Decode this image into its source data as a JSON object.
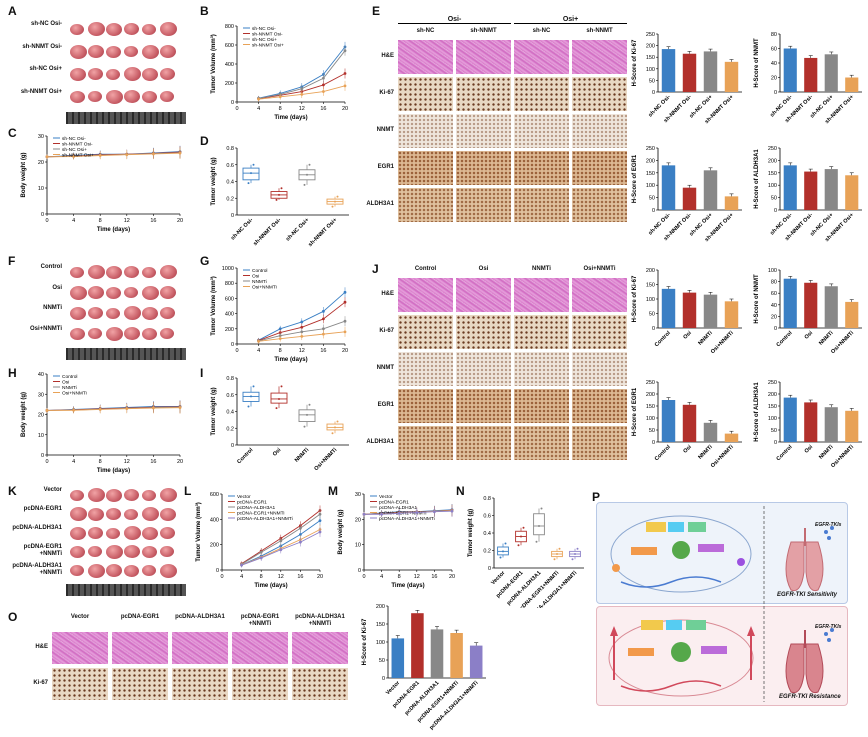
{
  "panels": {
    "A": "A",
    "B": "B",
    "C": "C",
    "D": "D",
    "E": "E",
    "F": "F",
    "G": "G",
    "H": "H",
    "I": "I",
    "J": "J",
    "K": "K",
    "L": "L",
    "M": "M",
    "N": "N",
    "O": "O",
    "P": "P"
  },
  "panelA": {
    "rows": [
      "sh-NC Osi-",
      "sh-NNMT Osi-",
      "sh-NC Osi+",
      "sh-NNMT Osi+"
    ]
  },
  "panelF": {
    "rows": [
      "Control",
      "Osi",
      "NNMTi",
      "Osi+NNMTi"
    ]
  },
  "panelK": {
    "rows": [
      "Vector",
      "pcDNA-EGR1",
      "pcDNA-ALDH3A1",
      "pcDNA-EGR1\n+NNMTi",
      "pcDNA-ALDH3A1\n+NNMTi"
    ]
  },
  "ihcE": {
    "group_left": "Osi-",
    "group_right": "Osi+",
    "cols": [
      "sh-NC",
      "sh-NNMT",
      "sh-NC",
      "sh-NNMT"
    ],
    "rows": [
      "H&E",
      "Ki-67",
      "NNMT",
      "EGR1",
      "ALDH3A1"
    ]
  },
  "ihcJ": {
    "cols": [
      "Control",
      "Osi",
      "NNMTi",
      "Osi+NNMTi"
    ],
    "rows": [
      "H&E",
      "Ki-67",
      "NNMT",
      "EGR1",
      "ALDH3A1"
    ]
  },
  "ihcO": {
    "cols": [
      "Vector",
      "pcDNA-EGR1",
      "pcDNA-ALDH3A1",
      "pcDNA-EGR1\n+NNMTi",
      "pcDNA-ALDH3A1\n+NNMTi"
    ],
    "rows": [
      "H&E",
      "Ki-67"
    ]
  },
  "schematic": {
    "sensitivity": "EGFR-TKI Sensitivity",
    "resistance": "EGFR-TKI Resistance",
    "tki": "EGFR-TKIs"
  },
  "chart_data": [
    {
      "id": "B",
      "type": "line",
      "xlabel": "Time (days)",
      "ylabel": "Tumor Volume (mm³)",
      "x": [
        4,
        8,
        12,
        16,
        20
      ],
      "xticks": [
        0,
        4,
        8,
        12,
        16,
        20
      ],
      "yticks": [
        0,
        200,
        400,
        600,
        800
      ],
      "ylim": [
        0,
        800
      ],
      "series": [
        {
          "name": "sh-NC Osi-",
          "color": "#3a7fc4",
          "values": [
            40,
            90,
            160,
            290,
            580
          ]
        },
        {
          "name": "sh-NNMT Osi-",
          "color": "#b2302b",
          "values": [
            35,
            70,
            110,
            180,
            300
          ]
        },
        {
          "name": "sh-NC Osi+",
          "color": "#888888",
          "values": [
            38,
            80,
            140,
            250,
            540
          ]
        },
        {
          "name": "sh-NNMT Osi+",
          "color": "#e8a257",
          "values": [
            30,
            55,
            80,
            110,
            170
          ]
        }
      ]
    },
    {
      "id": "C",
      "type": "line",
      "xlabel": "Time (days)",
      "ylabel": "Body weight (g)",
      "x": [
        0,
        4,
        8,
        12,
        16,
        20
      ],
      "xticks": [
        0,
        4,
        8,
        12,
        16,
        20
      ],
      "yticks": [
        0,
        10,
        20,
        30
      ],
      "ylim": [
        0,
        30
      ],
      "series": [
        {
          "name": "sh-NC Osi-",
          "color": "#3a7fc4",
          "values": [
            22,
            22.5,
            23,
            23,
            23.5,
            24
          ]
        },
        {
          "name": "sh-NNMT Osi-",
          "color": "#b2302b",
          "values": [
            22,
            22.3,
            22.8,
            23,
            23.3,
            23.8
          ]
        },
        {
          "name": "sh-NC Osi+",
          "color": "#888888",
          "values": [
            22,
            22.2,
            22.6,
            22.9,
            23.2,
            23.6
          ]
        },
        {
          "name": "sh-NNMT Osi+",
          "color": "#e8a257",
          "values": [
            22,
            22.1,
            22.5,
            22.8,
            23.1,
            23.4
          ]
        }
      ]
    },
    {
      "id": "D",
      "type": "box",
      "ylabel": "Tumor weight (g)",
      "yticks": [
        0.0,
        0.2,
        0.4,
        0.6,
        0.8
      ],
      "ylim": [
        0,
        0.8
      ],
      "categories": [
        "sh-NC Osi-",
        "sh-NNMT Osi-",
        "sh-NC Osi+",
        "sh-NNMT Osi+"
      ],
      "colors": [
        "#3a7fc4",
        "#b2302b",
        "#888888",
        "#e8a257"
      ],
      "boxes": [
        [
          0.38,
          0.42,
          0.5,
          0.56,
          0.6
        ],
        [
          0.18,
          0.2,
          0.24,
          0.28,
          0.32
        ],
        [
          0.36,
          0.42,
          0.48,
          0.54,
          0.6
        ],
        [
          0.1,
          0.13,
          0.16,
          0.19,
          0.22
        ]
      ]
    },
    {
      "id": "G",
      "type": "line",
      "xlabel": "Time (days)",
      "ylabel": "Tumor Volume (mm³)",
      "x": [
        4,
        8,
        12,
        16,
        20
      ],
      "xticks": [
        0,
        4,
        8,
        12,
        16,
        20
      ],
      "yticks": [
        0,
        200,
        400,
        600,
        800,
        1000
      ],
      "ylim": [
        0,
        1000
      ],
      "series": [
        {
          "name": "Control",
          "color": "#3a7fc4",
          "values": [
            50,
            200,
            290,
            430,
            680
          ]
        },
        {
          "name": "Osi",
          "color": "#b2302b",
          "values": [
            45,
            150,
            220,
            330,
            550
          ]
        },
        {
          "name": "NNMTi",
          "color": "#888888",
          "values": [
            40,
            110,
            160,
            200,
            300
          ]
        },
        {
          "name": "Osi+NNMTi",
          "color": "#e8a257",
          "values": [
            35,
            70,
            100,
            130,
            160
          ]
        }
      ]
    },
    {
      "id": "H",
      "type": "line",
      "xlabel": "Time (days)",
      "ylabel": "Body weight (g)",
      "x": [
        0,
        4,
        8,
        12,
        16,
        20
      ],
      "xticks": [
        0,
        4,
        8,
        12,
        16,
        20
      ],
      "yticks": [
        0,
        10,
        20,
        30,
        40
      ],
      "ylim": [
        0,
        40
      ],
      "series": [
        {
          "name": "Control",
          "color": "#3a7fc4",
          "values": [
            22,
            22.5,
            23,
            23.5,
            24,
            24
          ]
        },
        {
          "name": "Osi",
          "color": "#b2302b",
          "values": [
            22,
            22.3,
            22.8,
            23.2,
            23.6,
            23.8
          ]
        },
        {
          "name": "NNMTi",
          "color": "#888888",
          "values": [
            22,
            22.2,
            22.6,
            23,
            23.4,
            23.6
          ]
        },
        {
          "name": "Osi+NNMTi",
          "color": "#e8a257",
          "values": [
            22,
            22.1,
            22.5,
            22.9,
            23.2,
            23.4
          ]
        }
      ]
    },
    {
      "id": "I",
      "type": "box",
      "ylabel": "Tumor weight (g)",
      "yticks": [
        0.0,
        0.2,
        0.4,
        0.6,
        0.8
      ],
      "ylim": [
        0,
        0.8
      ],
      "categories": [
        "Control",
        "Osi",
        "NNMTi",
        "Osi+NNMTi"
      ],
      "colors": [
        "#3a7fc4",
        "#b2302b",
        "#888888",
        "#e8a257"
      ],
      "boxes": [
        [
          0.46,
          0.52,
          0.58,
          0.63,
          0.7
        ],
        [
          0.44,
          0.5,
          0.55,
          0.62,
          0.7
        ],
        [
          0.22,
          0.28,
          0.36,
          0.42,
          0.48
        ],
        [
          0.14,
          0.18,
          0.21,
          0.25,
          0.28
        ]
      ]
    },
    {
      "id": "L",
      "type": "line",
      "xlabel": "Time (days)",
      "ylabel": "Tumor Volume (mm³)",
      "x": [
        4,
        8,
        12,
        16,
        20
      ],
      "xticks": [
        0,
        4,
        8,
        12,
        16,
        20
      ],
      "yticks": [
        0,
        200,
        400,
        600
      ],
      "ylim": [
        0,
        600
      ],
      "series": [
        {
          "name": "Vector",
          "color": "#3a7fc4",
          "values": [
            40,
            110,
            190,
            280,
            390
          ]
        },
        {
          "name": "pcDNA-EGR1",
          "color": "#b2302b",
          "values": [
            50,
            150,
            250,
            350,
            470
          ]
        },
        {
          "name": "pcDNA-ALDH3A1",
          "color": "#888888",
          "values": [
            45,
            140,
            230,
            330,
            440
          ]
        },
        {
          "name": "pcDNA-EGR1+NNMTi",
          "color": "#e8a257",
          "values": [
            40,
            100,
            170,
            240,
            320
          ]
        },
        {
          "name": "pcDNA-ALDH3A1+NNMTi",
          "color": "#8b7fc7",
          "values": [
            38,
            95,
            160,
            220,
            300
          ]
        }
      ]
    },
    {
      "id": "M",
      "type": "line",
      "xlabel": "Time (days)",
      "ylabel": "Body weight (g)",
      "x": [
        0,
        4,
        8,
        12,
        16,
        20
      ],
      "xticks": [
        0,
        4,
        8,
        12,
        16,
        20
      ],
      "yticks": [
        0,
        10,
        20,
        30
      ],
      "ylim": [
        0,
        30
      ],
      "series": [
        {
          "name": "Vector",
          "color": "#3a7fc4",
          "values": [
            22,
            22.5,
            23,
            23,
            23.4,
            23.8
          ]
        },
        {
          "name": "pcDNA-EGR1",
          "color": "#b2302b",
          "values": [
            22,
            22.3,
            22.8,
            23,
            23.2,
            23.6
          ]
        },
        {
          "name": "pcDNA-ALDH3A1",
          "color": "#888888",
          "values": [
            22,
            22.2,
            22.6,
            22.9,
            23.2,
            23.5
          ]
        },
        {
          "name": "pcDNA-EGR1+NNMTi",
          "color": "#e8a257",
          "values": [
            22,
            22.1,
            22.5,
            22.8,
            23.1,
            23.4
          ]
        },
        {
          "name": "pcDNA-ALDH3A1+NNMTi",
          "color": "#8b7fc7",
          "values": [
            22,
            22,
            22.4,
            22.7,
            23,
            23.2
          ]
        }
      ]
    },
    {
      "id": "N",
      "type": "box",
      "ylabel": "Tumor weight (g)",
      "yticks": [
        0.0,
        0.2,
        0.4,
        0.6,
        0.8
      ],
      "ylim": [
        0,
        0.8
      ],
      "categories": [
        "Vector",
        "pcDNA-EGR1",
        "pcDNA-ALDH3A1",
        "pcDNA-EGR1+NNMTi",
        "pcDNA-ALDH3A1+NNMTi"
      ],
      "colors": [
        "#3a7fc4",
        "#b2302b",
        "#888888",
        "#e8a257",
        "#8b7fc7"
      ],
      "boxes": [
        [
          0.12,
          0.15,
          0.19,
          0.24,
          0.28
        ],
        [
          0.26,
          0.3,
          0.36,
          0.42,
          0.46
        ],
        [
          0.3,
          0.38,
          0.48,
          0.62,
          0.68
        ],
        [
          0.1,
          0.13,
          0.16,
          0.19,
          0.22
        ],
        [
          0.1,
          0.13,
          0.16,
          0.19,
          0.22
        ]
      ]
    },
    {
      "id": "E1",
      "type": "bar",
      "ylabel": "H-Score of Ki-67",
      "yticks": [
        0,
        50,
        100,
        150,
        200,
        250
      ],
      "ylim": [
        0,
        250
      ],
      "categories": [
        "sh-NC Osi-",
        "sh-NNMT Osi-",
        "sh-NC Osi+",
        "sh-NNMT Osi+"
      ],
      "colors": [
        "#3a7fc4",
        "#b2302b",
        "#888888",
        "#e8a257"
      ],
      "values": [
        185,
        165,
        175,
        130
      ]
    },
    {
      "id": "E2",
      "type": "bar",
      "ylabel": "H-Score of NNMT",
      "yticks": [
        0,
        20,
        40,
        60,
        80
      ],
      "ylim": [
        0,
        80
      ],
      "categories": [
        "sh-NC Osi-",
        "sh-NNMT Osi-",
        "sh-NC Osi+",
        "sh-NNMT Osi+"
      ],
      "colors": [
        "#3a7fc4",
        "#b2302b",
        "#888888",
        "#e8a257"
      ],
      "values": [
        60,
        47,
        52,
        20
      ]
    },
    {
      "id": "E3",
      "type": "bar",
      "ylabel": "H-Score of EGR1",
      "yticks": [
        0,
        50,
        100,
        150,
        200,
        250
      ],
      "ylim": [
        0,
        250
      ],
      "categories": [
        "sh-NC Osi-",
        "sh-NNMT Osi-",
        "sh-NC Osi+",
        "sh-NNMT Osi+"
      ],
      "colors": [
        "#3a7fc4",
        "#b2302b",
        "#888888",
        "#e8a257"
      ],
      "values": [
        180,
        90,
        160,
        55
      ]
    },
    {
      "id": "E4",
      "type": "bar",
      "ylabel": "H-Score of ALDH3A1",
      "yticks": [
        0,
        50,
        100,
        150,
        200,
        250
      ],
      "ylim": [
        0,
        250
      ],
      "categories": [
        "sh-NC Osi-",
        "sh-NNMT Osi-",
        "sh-NC Osi+",
        "sh-NNMT Osi+"
      ],
      "colors": [
        "#3a7fc4",
        "#b2302b",
        "#888888",
        "#e8a257"
      ],
      "values": [
        180,
        155,
        165,
        140
      ]
    },
    {
      "id": "J1",
      "type": "bar",
      "ylabel": "H-Score of Ki-67",
      "yticks": [
        0,
        50,
        100,
        150,
        200
      ],
      "ylim": [
        0,
        200
      ],
      "categories": [
        "Control",
        "Osi",
        "NNMTi",
        "Osi+NNMTi"
      ],
      "colors": [
        "#3a7fc4",
        "#b2302b",
        "#888888",
        "#e8a257"
      ],
      "values": [
        135,
        122,
        115,
        92
      ]
    },
    {
      "id": "J2",
      "type": "bar",
      "ylabel": "H-Score of NNMT",
      "yticks": [
        0,
        20,
        40,
        60,
        80,
        100
      ],
      "ylim": [
        0,
        100
      ],
      "categories": [
        "Control",
        "Osi",
        "NNMTi",
        "Osi+NNMTi"
      ],
      "colors": [
        "#3a7fc4",
        "#b2302b",
        "#888888",
        "#e8a257"
      ],
      "values": [
        85,
        78,
        72,
        45
      ]
    },
    {
      "id": "J3",
      "type": "bar",
      "ylabel": "H-Score of EGR1",
      "yticks": [
        0,
        50,
        100,
        150,
        200,
        250
      ],
      "ylim": [
        0,
        250
      ],
      "categories": [
        "Control",
        "Osi",
        "NNMTi",
        "Osi+NNMTi"
      ],
      "colors": [
        "#3a7fc4",
        "#b2302b",
        "#888888",
        "#e8a257"
      ],
      "values": [
        175,
        155,
        80,
        35
      ]
    },
    {
      "id": "J4",
      "type": "bar",
      "ylabel": "H-Score of ALDH3A1",
      "yticks": [
        0,
        50,
        100,
        150,
        200,
        250
      ],
      "ylim": [
        0,
        250
      ],
      "categories": [
        "Control",
        "Osi",
        "NNMTi",
        "Osi+NNMTi"
      ],
      "colors": [
        "#3a7fc4",
        "#b2302b",
        "#888888",
        "#e8a257"
      ],
      "values": [
        185,
        165,
        145,
        130
      ]
    },
    {
      "id": "O1",
      "type": "bar",
      "ylabel": "H-Score of Ki-67",
      "yticks": [
        0,
        50,
        100,
        150,
        200
      ],
      "ylim": [
        0,
        200
      ],
      "categories": [
        "Vector",
        "pcDNA-EGR1",
        "pcDNA-ALDH3A1",
        "pcDNA-EGR1+NNMTi",
        "pcDNA-ALDH3A1+NNMTi"
      ],
      "colors": [
        "#3a7fc4",
        "#b2302b",
        "#888888",
        "#e8a257",
        "#8b7fc7"
      ],
      "values": [
        110,
        180,
        135,
        125,
        90
      ]
    }
  ]
}
